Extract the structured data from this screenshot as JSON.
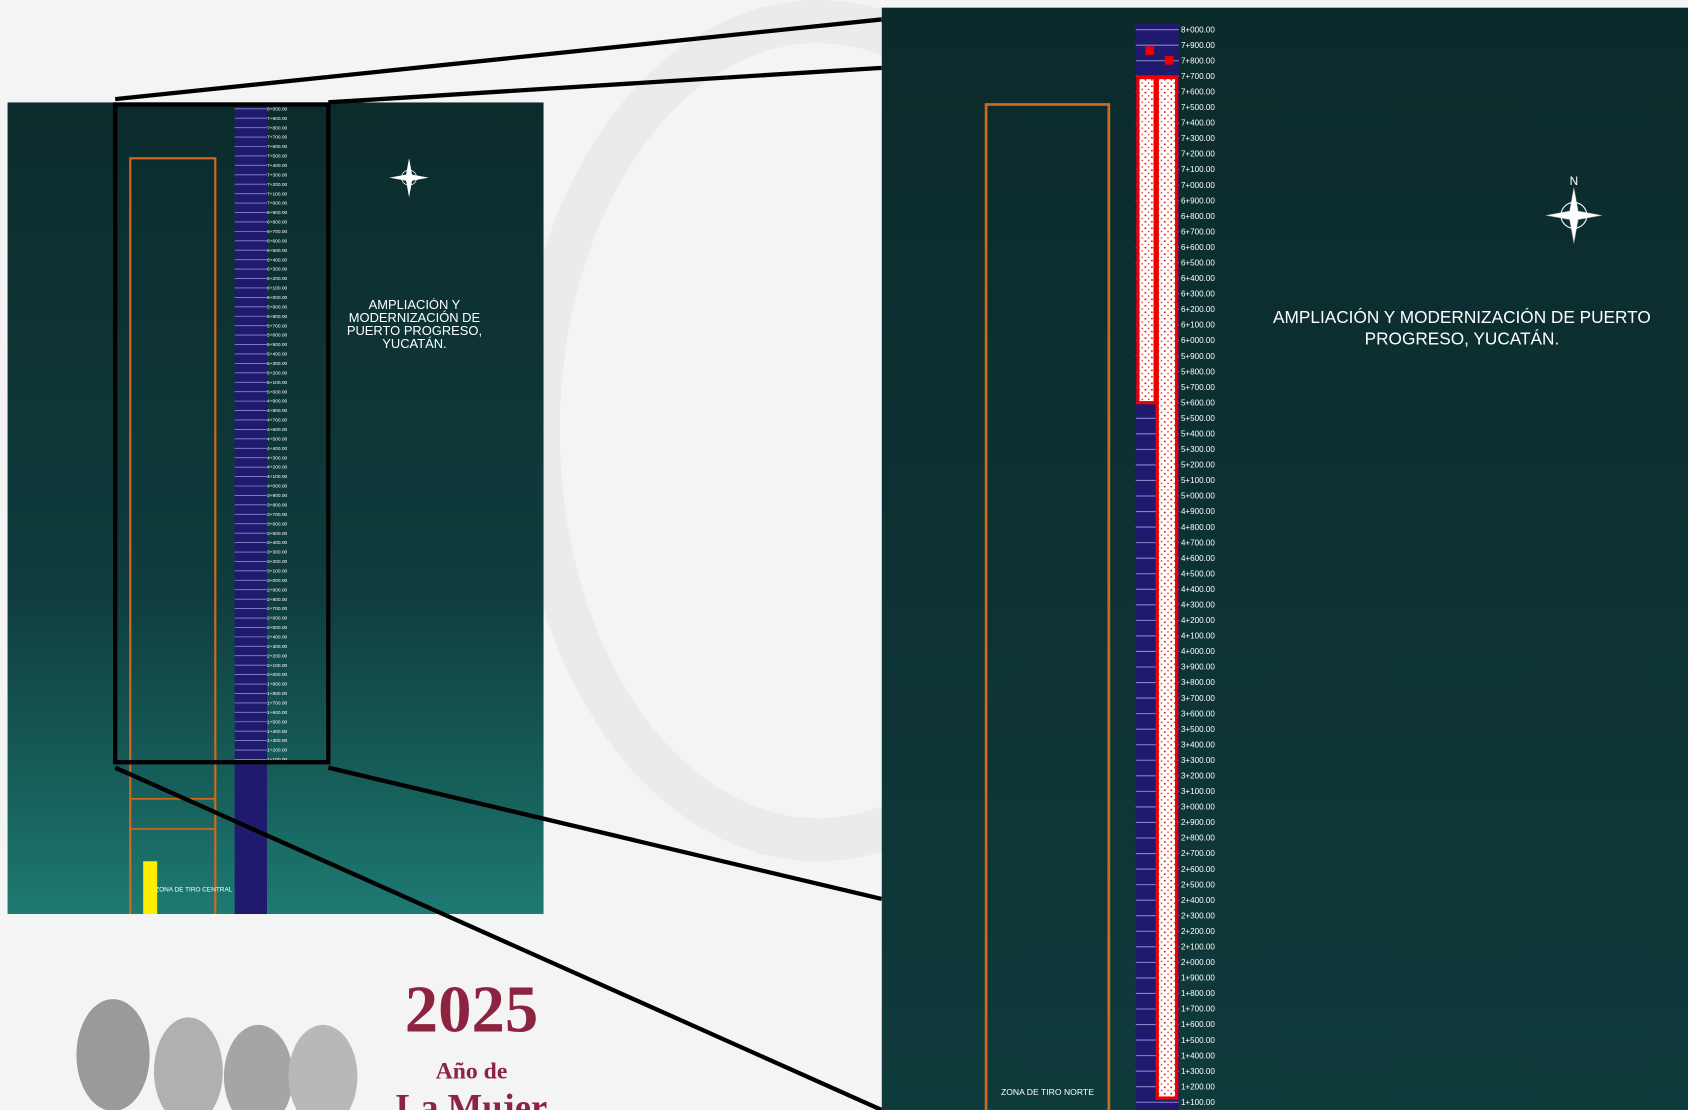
{
  "title": "AMPLIACIÓN Y MODERNIZACIÓN DE PUERTO PROGRESO, YUCATÁN.",
  "north": "N",
  "zones": {
    "north": "ZONA DE TIRO NORTE",
    "central": "ZONA DE TIRO CENTRAL"
  },
  "stations": [
    "8+000.00",
    "7+900.00",
    "7+800.00",
    "7+700.00",
    "7+600.00",
    "7+500.00",
    "7+400.00",
    "7+300.00",
    "7+200.00",
    "7+100.00",
    "7+000.00",
    "6+900.00",
    "6+800.00",
    "6+700.00",
    "6+600.00",
    "6+500.00",
    "6+400.00",
    "6+300.00",
    "6+200.00",
    "6+100.00",
    "6+000.00",
    "5+900.00",
    "5+800.00",
    "5+700.00",
    "5+600.00",
    "5+500.00",
    "5+400.00",
    "5+300.00",
    "5+200.00",
    "5+100.00",
    "5+000.00",
    "4+900.00",
    "4+800.00",
    "4+700.00",
    "4+600.00",
    "4+500.00",
    "4+400.00",
    "4+300.00",
    "4+200.00",
    "4+100.00",
    "4+000.00",
    "3+900.00",
    "3+800.00",
    "3+700.00",
    "3+600.00",
    "3+500.00",
    "3+400.00",
    "3+300.00",
    "3+200.00",
    "3+100.00",
    "3+000.00",
    "2+900.00",
    "2+800.00",
    "2+700.00",
    "2+600.00",
    "2+500.00",
    "2+400.00",
    "2+300.00",
    "2+200.00",
    "2+100.00",
    "2+000.00",
    "1+900.00",
    "1+800.00",
    "1+700.00",
    "1+600.00",
    "1+500.00",
    "1+400.00",
    "1+300.00",
    "1+200.00",
    "1+100.00"
  ],
  "logo": {
    "year": "2025",
    "line1": "Año de",
    "line2": "La Mujer"
  }
}
